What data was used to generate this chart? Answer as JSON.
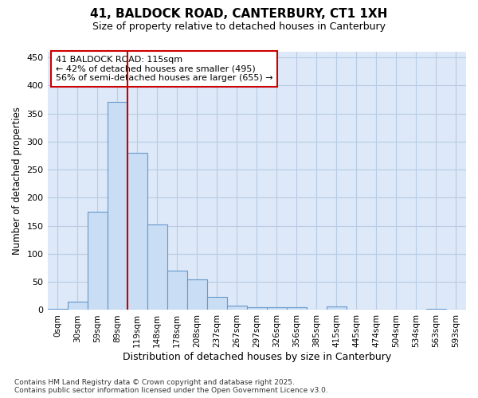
{
  "title": "41, BALDOCK ROAD, CANTERBURY, CT1 1XH",
  "subtitle": "Size of property relative to detached houses in Canterbury",
  "xlabel": "Distribution of detached houses by size in Canterbury",
  "ylabel": "Number of detached properties",
  "bin_labels": [
    "0sqm",
    "30sqm",
    "59sqm",
    "89sqm",
    "119sqm",
    "148sqm",
    "178sqm",
    "208sqm",
    "237sqm",
    "267sqm",
    "297sqm",
    "326sqm",
    "356sqm",
    "385sqm",
    "415sqm",
    "445sqm",
    "474sqm",
    "504sqm",
    "534sqm",
    "563sqm",
    "593sqm"
  ],
  "values": [
    2,
    15,
    175,
    370,
    280,
    153,
    70,
    55,
    23,
    8,
    5,
    5,
    5,
    0,
    6,
    0,
    0,
    0,
    0,
    2,
    0
  ],
  "bar_color": "#c9ddf5",
  "bar_edge_color": "#6699cc",
  "vline_color": "#cc0000",
  "vline_bin_index": 4,
  "annotation_line1": "41 BALDOCK ROAD: 115sqm",
  "annotation_line2": "← 42% of detached houses are smaller (495)",
  "annotation_line3": "56% of semi-detached houses are larger (655) →",
  "annotation_box_edgecolor": "#cc0000",
  "plot_bg_color": "#dde8f8",
  "fig_bg_color": "#ffffff",
  "grid_color": "#b8cce4",
  "ylim": [
    0,
    460
  ],
  "yticks": [
    0,
    50,
    100,
    150,
    200,
    250,
    300,
    350,
    400,
    450
  ],
  "footer_line1": "Contains HM Land Registry data © Crown copyright and database right 2025.",
  "footer_line2": "Contains public sector information licensed under the Open Government Licence v3.0."
}
